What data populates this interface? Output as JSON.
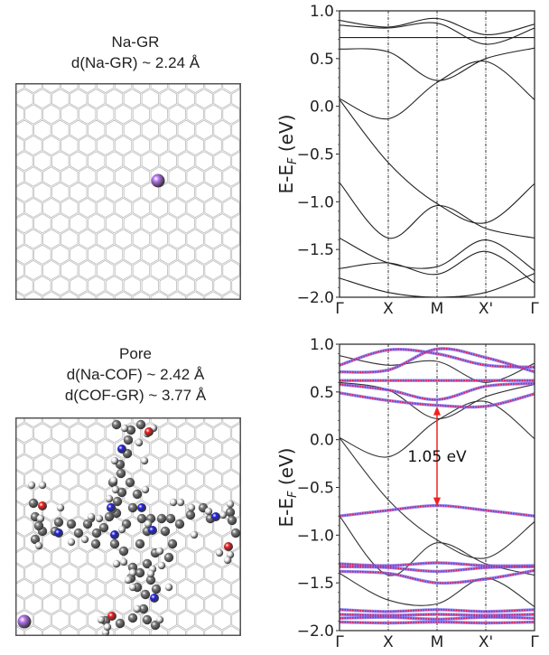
{
  "panels": [
    {
      "title": "Na-GR",
      "caption_lines": [
        "d(Na-GR) ~ 2.24 Å"
      ],
      "structure": {
        "substrate": "graphene",
        "adsorbate": "Na",
        "atom_colors": {
          "C_graphene": "#9a9a9a",
          "Na": "#b070e8"
        }
      }
    },
    {
      "title": "Pore",
      "caption_lines": [
        "d(Na-COF) ~ 2.42 Å",
        "d(COF-GR) ~ 3.77 Å"
      ],
      "structure": {
        "substrate": "graphene",
        "adsorbate": "COF + Na",
        "atom_colors": {
          "C": "#7a7a7a",
          "H": "#f2f2f2",
          "N": "#2222dd",
          "O": "#ee2020",
          "Na": "#b070e8"
        }
      }
    }
  ],
  "chart_data": [
    {
      "type": "line",
      "title": "",
      "xlabel": "",
      "ylabel": "E-E_F (eV)",
      "ylim": [
        -2.0,
        1.0
      ],
      "yticks": [
        -2.0,
        -1.5,
        -1.0,
        -0.5,
        0.0,
        0.5,
        1.0
      ],
      "ytick_labels": [
        "−2.0",
        "−1.5",
        "−1.0",
        "−0.5",
        "0.0",
        "0.5",
        "1.0"
      ],
      "x": [
        0,
        1,
        2,
        3,
        4
      ],
      "xtick_labels": [
        "Γ",
        "X",
        "M",
        "X'",
        "Γ"
      ],
      "vlines_at": [
        1,
        2,
        3
      ],
      "grid": false,
      "series": [
        {
          "name": "band",
          "color": "#222222",
          "x": [
            0,
            1,
            2,
            3,
            4
          ],
          "y": [
            0.08,
            -0.13,
            0.25,
            0.47,
            0.07
          ]
        },
        {
          "name": "band",
          "color": "#222222",
          "x": [
            0,
            1,
            2,
            3,
            4
          ],
          "y": [
            0.6,
            0.57,
            0.27,
            0.5,
            0.61
          ]
        },
        {
          "name": "band",
          "color": "#222222",
          "x": [
            0,
            1,
            2,
            3,
            4
          ],
          "y": [
            0.07,
            -0.59,
            -1.02,
            -1.22,
            -0.81
          ]
        },
        {
          "name": "band",
          "color": "#222222",
          "x": [
            0,
            1,
            2,
            3,
            4
          ],
          "y": [
            -0.8,
            -1.38,
            -1.04,
            -1.28,
            -1.38
          ]
        },
        {
          "name": "band",
          "color": "#222222",
          "x": [
            0,
            1,
            2,
            3,
            4
          ],
          "y": [
            -1.38,
            -1.64,
            -1.68,
            -1.4,
            -1.72
          ]
        },
        {
          "name": "band",
          "color": "#222222",
          "x": [
            0,
            1,
            2,
            3,
            4
          ],
          "y": [
            -1.7,
            -1.64,
            -1.76,
            -1.52,
            -1.85
          ]
        },
        {
          "name": "band",
          "color": "#222222",
          "x": [
            0,
            1,
            2,
            3,
            4
          ],
          "y": [
            0.85,
            0.82,
            0.87,
            0.65,
            0.82
          ]
        },
        {
          "name": "band",
          "color": "#222222",
          "x": [
            0,
            1,
            2,
            3,
            4
          ],
          "y": [
            0.9,
            0.83,
            0.92,
            0.75,
            0.86
          ]
        },
        {
          "name": "band",
          "color": "#222222",
          "x": [
            0,
            1,
            2,
            3,
            4
          ],
          "y": [
            0.72,
            0.72,
            0.72,
            0.72,
            0.72
          ]
        },
        {
          "name": "band",
          "color": "#222222",
          "x": [
            0,
            1,
            2,
            3,
            4
          ],
          "y": [
            -1.8,
            -1.95,
            -2.0,
            -1.95,
            -1.75
          ]
        }
      ]
    },
    {
      "type": "line",
      "title": "",
      "xlabel": "",
      "ylabel": "E-E_F (eV)",
      "ylim": [
        -2.0,
        1.0
      ],
      "yticks": [
        -2.0,
        -1.5,
        -1.0,
        -0.5,
        0.0,
        0.5,
        1.0
      ],
      "ytick_labels": [
        "−2.0",
        "−1.5",
        "−1.0",
        "−0.5",
        "0.0",
        "0.5",
        "1.0"
      ],
      "x": [
        0,
        1,
        2,
        3,
        4
      ],
      "xtick_labels": [
        "Γ",
        "X",
        "M",
        "X'",
        "Γ"
      ],
      "vlines_at": [
        1,
        2,
        3
      ],
      "grid": false,
      "annotation": {
        "text": "1.05 eV",
        "arrow_x": 2,
        "arrow_from": 0.35,
        "arrow_to": -0.7,
        "color": "#ee2222"
      },
      "series": [
        {
          "name": "graphene",
          "color": "#333333",
          "x": [
            0,
            1,
            2,
            3,
            4
          ],
          "y": [
            0.02,
            -0.18,
            0.2,
            0.4,
            0.01
          ]
        },
        {
          "name": "graphene",
          "color": "#333333",
          "x": [
            0,
            1,
            2,
            3,
            4
          ],
          "y": [
            0.02,
            -0.63,
            -1.05,
            -1.24,
            -0.86
          ]
        },
        {
          "name": "graphene",
          "color": "#333333",
          "x": [
            0,
            1,
            2,
            3,
            4
          ],
          "y": [
            -0.8,
            -1.42,
            -1.08,
            -1.3,
            -1.42
          ]
        },
        {
          "name": "graphene",
          "color": "#333333",
          "x": [
            0,
            1,
            2,
            3,
            4
          ],
          "y": [
            -1.4,
            -1.68,
            -1.72,
            -1.45,
            -1.75
          ]
        },
        {
          "name": "graphene",
          "color": "#333333",
          "x": [
            0,
            1,
            2,
            3,
            4
          ],
          "y": [
            0.6,
            0.52,
            0.22,
            0.45,
            0.58
          ]
        },
        {
          "name": "graphene",
          "color": "#333333",
          "x": [
            0,
            1,
            2,
            3,
            4
          ],
          "y": [
            0.88,
            0.78,
            0.82,
            0.6,
            0.8
          ]
        },
        {
          "name": "COF",
          "color": "#9b1fb0",
          "x": [
            0,
            1,
            2,
            3,
            4
          ],
          "y": [
            0.78,
            0.94,
            0.9,
            0.78,
            0.76
          ]
        },
        {
          "name": "COF",
          "color": "#9b1fb0",
          "x": [
            0,
            1,
            2,
            3,
            4
          ],
          "y": [
            0.71,
            0.73,
            0.95,
            0.86,
            0.71
          ]
        },
        {
          "name": "COF",
          "color": "#9b1fb0",
          "x": [
            0,
            1,
            2,
            3,
            4
          ],
          "y": [
            0.62,
            0.62,
            0.62,
            0.62,
            0.62
          ]
        },
        {
          "name": "COF",
          "color": "#9b1fb0",
          "x": [
            0,
            1,
            2,
            3,
            4
          ],
          "y": [
            0.58,
            0.52,
            0.42,
            0.56,
            0.59
          ]
        },
        {
          "name": "COF",
          "color": "#9b1fb0",
          "x": [
            0,
            1,
            2,
            3,
            4
          ],
          "y": [
            0.49,
            0.41,
            0.36,
            0.35,
            0.48
          ]
        },
        {
          "name": "COF",
          "color": "#9b1fb0",
          "x": [
            0,
            1,
            2,
            3,
            4
          ],
          "y": [
            -0.8,
            -0.74,
            -0.69,
            -0.74,
            -0.8
          ]
        },
        {
          "name": "COF",
          "color": "#9b1fb0",
          "x": [
            0,
            1,
            2,
            3,
            4
          ],
          "y": [
            -1.3,
            -1.32,
            -1.29,
            -1.32,
            -1.32
          ]
        },
        {
          "name": "COF",
          "color": "#9b1fb0",
          "x": [
            0,
            1,
            2,
            3,
            4
          ],
          "y": [
            -1.33,
            -1.34,
            -1.38,
            -1.34,
            -1.33
          ]
        },
        {
          "name": "COF",
          "color": "#9b1fb0",
          "x": [
            0,
            1,
            2,
            3,
            4
          ],
          "y": [
            -1.38,
            -1.4,
            -1.5,
            -1.46,
            -1.37
          ]
        },
        {
          "name": "COF",
          "color": "#9b1fb0",
          "x": [
            0,
            1,
            2,
            3,
            4
          ],
          "y": [
            -1.78,
            -1.8,
            -1.78,
            -1.8,
            -1.78
          ]
        },
        {
          "name": "COF",
          "color": "#9b1fb0",
          "x": [
            0,
            1,
            2,
            3,
            4
          ],
          "y": [
            -1.83,
            -1.84,
            -1.83,
            -1.84,
            -1.83
          ]
        },
        {
          "name": "COF",
          "color": "#9b1fb0",
          "x": [
            0,
            1,
            2,
            3,
            4
          ],
          "y": [
            -1.87,
            -1.86,
            -1.88,
            -1.86,
            -1.87
          ]
        },
        {
          "name": "COF",
          "color": "#9b1fb0",
          "x": [
            0,
            1,
            2,
            3,
            4
          ],
          "y": [
            -1.91,
            -1.92,
            -1.91,
            -1.92,
            -1.91
          ]
        }
      ]
    }
  ]
}
